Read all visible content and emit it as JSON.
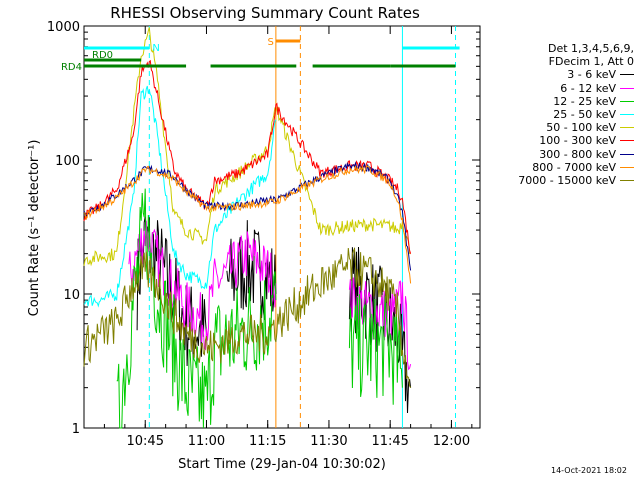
{
  "chart_data": {
    "type": "line",
    "title": "RHESSI Observing Summary Count Rates",
    "xlabel": "Start Time (29-Jan-04 10:30:02)",
    "ylabel": "Count Rate (s⁻¹ detector⁻¹)",
    "yscale": "log",
    "ylim": [
      1,
      1000
    ],
    "xlim": [
      "10:30",
      "12:07"
    ],
    "x_ticks": [
      "10:45",
      "11:00",
      "11:15",
      "11:30",
      "11:45",
      "12:00"
    ],
    "y_ticks": [
      "1",
      "10",
      "100",
      "1000"
    ],
    "legend_title": [
      "Det 1,3,4,5,6,9,",
      "FDecim 1, Att 0"
    ],
    "legend_position": "right",
    "series": [
      {
        "name": "3 - 6 keV",
        "color": "#000000",
        "x": [
          "10:30",
          "10:40",
          "10:43",
          "10:45",
          "10:48",
          "10:52",
          "10:55",
          "11:00",
          "11:02",
          "11:05",
          "11:10",
          "11:15",
          "11:17",
          "11:28",
          "11:35",
          "11:40",
          "11:45",
          "11:47",
          "11:48",
          "11:50"
        ],
        "y": [
          null,
          null,
          12,
          25,
          18,
          10,
          6,
          5,
          null,
          12,
          16,
          14,
          10,
          null,
          12,
          9,
          6,
          5,
          3,
          2
        ]
      },
      {
        "name": "6 - 12 keV",
        "color": "#ff00ff",
        "x": [
          "10:38",
          "10:41",
          "10:43",
          "10:45",
          "10:48",
          "10:52",
          "10:55",
          "11:00",
          "11:02",
          "11:05",
          "11:10",
          "11:15",
          "11:17",
          "11:28",
          "11:35",
          "11:40",
          "11:45",
          "11:47",
          "11:48",
          "11:50"
        ],
        "y": [
          null,
          13,
          20,
          30,
          18,
          11,
          8,
          6,
          12,
          14,
          20,
          15,
          12,
          null,
          9,
          8,
          7,
          8,
          10,
          3
        ]
      },
      {
        "name": "12 - 25 keV",
        "color": "#00cc00",
        "x": [
          "10:30",
          "10:34",
          "10:38",
          "10:42",
          "10:45",
          "10:48",
          "10:52",
          "10:55",
          "11:00",
          "11:02",
          "11:08",
          "11:15",
          "11:17",
          "11:28",
          "11:35",
          "11:40",
          "11:45",
          "11:47",
          "11:48"
        ],
        "y": [
          null,
          null,
          1,
          8,
          35,
          10,
          4,
          2,
          1.5,
          4,
          5,
          7,
          9,
          null,
          4,
          4,
          4,
          3,
          2
        ]
      },
      {
        "name": "25 - 50 keV",
        "color": "#00ffff",
        "x": [
          "10:30",
          "10:34",
          "10:38",
          "10:42",
          "10:44",
          "10:46",
          "10:48",
          "10:52",
          "10:55",
          "11:00",
          "11:02",
          "11:08",
          "11:15",
          "11:17",
          "11:28",
          "11:35",
          "11:40",
          "11:45",
          "11:47",
          "11:48",
          "11:50"
        ],
        "y": [
          9,
          9,
          10,
          50,
          300,
          350,
          150,
          20,
          14,
          12,
          30,
          50,
          80,
          200,
          null,
          null,
          null,
          null,
          null,
          null,
          null
        ]
      },
      {
        "name": "50 - 100 keV",
        "color": "#cccc00",
        "x": [
          "10:30",
          "10:34",
          "10:38",
          "10:42",
          "10:44",
          "10:46",
          "10:48",
          "10:52",
          "10:55",
          "11:00",
          "11:02",
          "11:08",
          "11:15",
          "11:17",
          "11:28",
          "11:35",
          "11:40",
          "11:45",
          "11:47",
          "11:48",
          "11:50"
        ],
        "y": [
          18,
          19,
          20,
          200,
          600,
          900,
          400,
          40,
          30,
          25,
          60,
          80,
          120,
          250,
          30,
          32,
          33,
          32,
          30,
          35,
          20
        ]
      },
      {
        "name": "100 - 300 keV",
        "color": "#ff0000",
        "x": [
          "10:30",
          "10:34",
          "10:38",
          "10:42",
          "10:44",
          "10:46",
          "10:48",
          "10:52",
          "10:55",
          "11:00",
          "11:02",
          "11:08",
          "11:15",
          "11:17",
          "11:28",
          "11:35",
          "11:40",
          "11:45",
          "11:47",
          "11:48",
          "11:50"
        ],
        "y": [
          38,
          45,
          60,
          150,
          450,
          550,
          300,
          85,
          60,
          45,
          70,
          80,
          110,
          250,
          80,
          90,
          90,
          70,
          60,
          50,
          20
        ]
      },
      {
        "name": "300 - 800 keV",
        "color": "#00008b",
        "x": [
          "10:30",
          "10:34",
          "10:38",
          "10:42",
          "10:45",
          "10:48",
          "10:52",
          "10:55",
          "11:00",
          "11:02",
          "11:08",
          "11:15",
          "11:17",
          "11:28",
          "11:35",
          "11:40",
          "11:45",
          "11:47",
          "11:48",
          "11:50"
        ],
        "y": [
          40,
          45,
          55,
          70,
          85,
          85,
          75,
          60,
          45,
          45,
          46,
          50,
          50,
          75,
          90,
          88,
          70,
          50,
          40,
          15
        ]
      },
      {
        "name": "800 - 7000 keV",
        "color": "#ff8c00",
        "x": [
          "10:30",
          "10:34",
          "10:38",
          "10:42",
          "10:45",
          "10:48",
          "10:52",
          "10:55",
          "11:00",
          "11:02",
          "11:08",
          "11:15",
          "11:17",
          "11:28",
          "11:35",
          "11:40",
          "11:45",
          "11:47",
          "11:48",
          "11:50"
        ],
        "y": [
          38,
          44,
          52,
          68,
          85,
          82,
          72,
          58,
          44,
          44,
          45,
          48,
          49,
          72,
          85,
          85,
          68,
          48,
          35,
          12
        ]
      },
      {
        "name": "7000 - 15000 keV",
        "color": "#808000",
        "x": [
          "10:30",
          "10:34",
          "10:38",
          "10:42",
          "10:45",
          "10:48",
          "10:52",
          "10:55",
          "11:00",
          "11:02",
          "11:08",
          "11:15",
          "11:17",
          "11:28",
          "11:35",
          "11:40",
          "11:45",
          "11:47",
          "11:48",
          "11:50"
        ],
        "y": [
          4,
          5,
          6,
          12,
          15,
          12,
          7,
          5,
          4,
          4,
          5,
          5,
          6,
          12,
          16,
          14,
          10,
          7,
          4,
          2
        ]
      }
    ],
    "annotations": [
      {
        "label": "RD0",
        "color": "#008000",
        "spans": [
          [
            "10:30",
            "10:44"
          ]
        ]
      },
      {
        "label": "RD4",
        "color": "#008000",
        "spans": [
          [
            "10:30",
            "10:55"
          ],
          [
            "11:01",
            "11:22"
          ],
          [
            "11:26",
            "11:45"
          ],
          [
            "11:45",
            "12:01"
          ]
        ]
      },
      {
        "label": "N",
        "color": "#00ffff",
        "spans": [
          [
            "10:30",
            "10:46"
          ],
          [
            "11:48",
            "12:02"
          ]
        ]
      },
      {
        "label": "S",
        "color": "#ff8c00",
        "spans": [
          [
            "11:17",
            "11:23"
          ]
        ]
      }
    ],
    "vertical_markers": [
      {
        "time": "10:46",
        "color": "#00ffff",
        "style": "dashed"
      },
      {
        "time": "11:17",
        "color": "#ff8c00",
        "style": "solid"
      },
      {
        "time": "11:23",
        "color": "#ff8c00",
        "style": "dashed"
      },
      {
        "time": "11:48",
        "color": "#00ffff",
        "style": "solid"
      },
      {
        "time": "12:01",
        "color": "#00ffff",
        "style": "dashed"
      }
    ]
  },
  "footer_date": "14-Oct-2021 18:02"
}
